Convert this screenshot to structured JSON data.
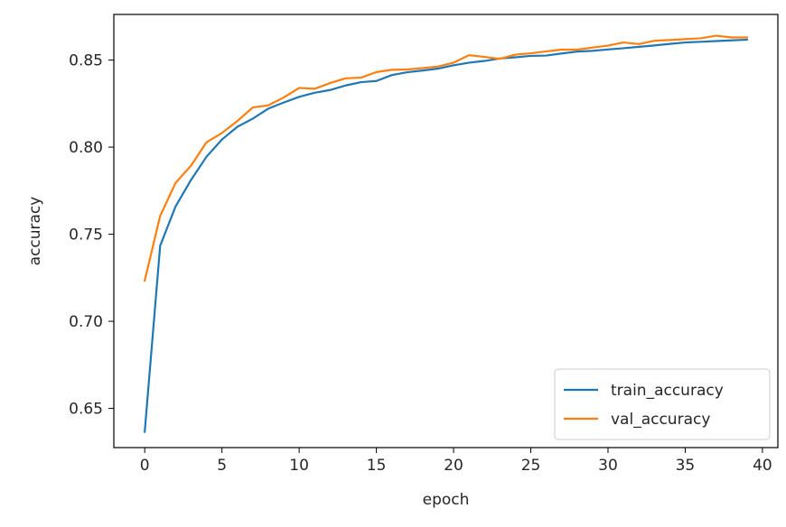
{
  "chart_data": {
    "type": "line",
    "title": "",
    "xlabel": "epoch",
    "ylabel": "accuracy",
    "xlim": [
      -2,
      41
    ],
    "ylim": [
      0.6275,
      0.8762
    ],
    "xticks": [
      0,
      5,
      10,
      15,
      20,
      25,
      30,
      35,
      40
    ],
    "xtick_labels": [
      "0",
      "5",
      "10",
      "15",
      "20",
      "25",
      "30",
      "35",
      "40"
    ],
    "yticks": [
      0.65,
      0.7,
      0.75,
      0.8,
      0.85
    ],
    "ytick_labels": [
      "0.65",
      "0.70",
      "0.75",
      "0.80",
      "0.85"
    ],
    "grid": false,
    "legend_position": "lower-right",
    "x": [
      0,
      1,
      2,
      3,
      4,
      5,
      6,
      7,
      8,
      9,
      10,
      11,
      12,
      13,
      14,
      15,
      16,
      17,
      18,
      19,
      20,
      21,
      22,
      23,
      24,
      25,
      26,
      27,
      28,
      29,
      30,
      31,
      32,
      33,
      34,
      35,
      36,
      37,
      38,
      39
    ],
    "series": [
      {
        "name": "train_accuracy",
        "color": "#1f77b4",
        "values": [
          0.6366,
          0.7434,
          0.766,
          0.7812,
          0.7945,
          0.8044,
          0.8117,
          0.8164,
          0.8221,
          0.8256,
          0.8289,
          0.8312,
          0.8328,
          0.8354,
          0.8373,
          0.838,
          0.8414,
          0.843,
          0.844,
          0.8451,
          0.847,
          0.8485,
          0.8495,
          0.8509,
          0.8516,
          0.8524,
          0.8526,
          0.8538,
          0.8549,
          0.8553,
          0.8561,
          0.8568,
          0.8576,
          0.8584,
          0.8593,
          0.8601,
          0.8605,
          0.8609,
          0.8613,
          0.8617
        ]
      },
      {
        "name": "val_accuracy",
        "color": "#ff7f0e",
        "values": [
          0.7234,
          0.7605,
          0.7795,
          0.7894,
          0.8028,
          0.8081,
          0.815,
          0.8228,
          0.824,
          0.8285,
          0.834,
          0.8335,
          0.8368,
          0.8395,
          0.8399,
          0.8431,
          0.8444,
          0.8446,
          0.8454,
          0.8463,
          0.8485,
          0.8528,
          0.8518,
          0.8507,
          0.8531,
          0.8539,
          0.855,
          0.856,
          0.856,
          0.8572,
          0.8583,
          0.8601,
          0.8592,
          0.8611,
          0.8615,
          0.862,
          0.8625,
          0.864,
          0.863,
          0.863
        ]
      }
    ]
  }
}
